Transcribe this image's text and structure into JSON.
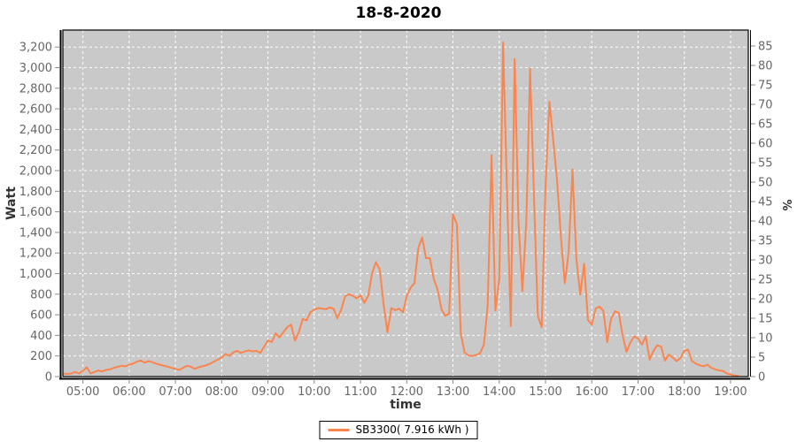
{
  "title": "18-8-2020",
  "legend": {
    "label": "SB3300( 7.916 kWh )"
  },
  "colors": {
    "series": "#fb854e",
    "plot_bg": "#c9c9c9",
    "grid": "#ffffff",
    "axis_line": "#000000",
    "tick_mark": "#8a8a8a",
    "tick_label": "#666666",
    "axis_title": "#333333",
    "title": "#000000"
  },
  "axes": {
    "left": {
      "label": "Watt",
      "ticks": [
        0,
        200,
        400,
        600,
        800,
        1000,
        1200,
        1400,
        1600,
        1800,
        2000,
        2200,
        2400,
        2600,
        2800,
        3000,
        3200
      ],
      "axis_max": 3365
    },
    "right": {
      "label": "%",
      "ticks": [
        0,
        5,
        10,
        15,
        20,
        25,
        30,
        35,
        40,
        45,
        50,
        55,
        60,
        65,
        70,
        75,
        80,
        85
      ],
      "axis_max": 89.1
    },
    "x": {
      "label": "time",
      "tick_labels": [
        "05:00",
        "06:00",
        "07:00",
        "08:00",
        "09:00",
        "10:00",
        "11:00",
        "12:00",
        "13:00",
        "14:00",
        "15:00",
        "16:00",
        "17:00",
        "18:00",
        "19:00"
      ],
      "tick_minutes": [
        300,
        360,
        420,
        480,
        540,
        600,
        660,
        720,
        780,
        840,
        900,
        960,
        1020,
        1080,
        1140
      ]
    }
  },
  "chart_data": {
    "type": "line",
    "title": "18-8-2020",
    "xlabel": "time",
    "ylabel_left": "Watt",
    "ylabel_right": "%",
    "x_range_minutes": [
      274,
      1163
    ],
    "ylim_watt": [
      0,
      3365
    ],
    "ylim_percent": [
      0,
      89.1
    ],
    "grid": "white-dashed",
    "legend_position": "bottom-center",
    "series": [
      {
        "name": "SB3300( 7.916 kWh )",
        "color": "#fb854e",
        "start_minute": 275,
        "step_minutes": 5,
        "watts": [
          30,
          25,
          30,
          45,
          30,
          55,
          90,
          30,
          45,
          60,
          50,
          65,
          70,
          85,
          95,
          105,
          100,
          115,
          125,
          145,
          155,
          135,
          150,
          140,
          125,
          115,
          105,
          95,
          85,
          75,
          65,
          85,
          105,
          95,
          75,
          90,
          100,
          110,
          125,
          145,
          165,
          185,
          220,
          200,
          235,
          250,
          230,
          245,
          255,
          245,
          250,
          230,
          290,
          350,
          335,
          420,
          380,
          430,
          480,
          505,
          350,
          430,
          560,
          545,
          625,
          650,
          665,
          660,
          655,
          670,
          660,
          565,
          650,
          780,
          800,
          785,
          760,
          790,
          715,
          785,
          1000,
          1110,
          1040,
          700,
          430,
          665,
          645,
          660,
          625,
          780,
          865,
          905,
          1250,
          1350,
          1150,
          1150,
          950,
          845,
          655,
          590,
          610,
          1575,
          1480,
          420,
          235,
          205,
          200,
          210,
          225,
          310,
          690,
          2150,
          640,
          950,
          3245,
          1800,
          490,
          3085,
          1500,
          830,
          1500,
          2990,
          1750,
          590,
          480,
          1840,
          2670,
          2300,
          1900,
          1355,
          905,
          1205,
          2010,
          1150,
          795,
          1095,
          550,
          505,
          660,
          680,
          640,
          335,
          560,
          635,
          620,
          400,
          240,
          330,
          390,
          370,
          310,
          390,
          165,
          250,
          305,
          290,
          155,
          215,
          185,
          150,
          180,
          250,
          260,
          150,
          125,
          110,
          100,
          115,
          85,
          70,
          60,
          55,
          30,
          20,
          10,
          5
        ]
      }
    ]
  }
}
